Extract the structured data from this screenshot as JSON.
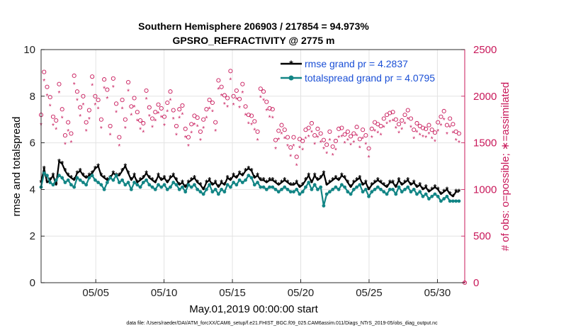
{
  "chart_data": {
    "type": "line",
    "title": "Southern Hemisphere 206903 / 217854 = 94.973%",
    "subtitle": "GPSRO_REFRACTIVITY @ 2775 m",
    "xlabel": "May.01,2019 00:00:00 start",
    "ylabel_left": "rmse and totalspread",
    "ylabel_right": "# of obs: o=possible; ∗=assimilated",
    "xlim": [
      1,
      32
    ],
    "ylim_left": [
      0,
      10
    ],
    "ylim_right": [
      0,
      2500
    ],
    "x_ticks": [
      5,
      10,
      15,
      20,
      25,
      30
    ],
    "x_tick_labels": [
      "05/05",
      "05/10",
      "05/15",
      "05/20",
      "05/25",
      "05/30"
    ],
    "y_ticks_left": [
      "0",
      "2",
      "4",
      "6",
      "8",
      "10"
    ],
    "y_ticks_right": [
      "0",
      "500",
      "1000",
      "1500",
      "2000",
      "2500"
    ],
    "grid": true,
    "legend_position": "top-right",
    "series": [
      {
        "name": "rmse grand pr = 4.2837",
        "axis": "left",
        "color": "#000000",
        "marker": "asterisk",
        "values": [
          4.3,
          4.9,
          4.3,
          4.4,
          4.6,
          4.2,
          5.2,
          5.1,
          4.8,
          4.6,
          4.5,
          4.4,
          4.7,
          4.8,
          4.6,
          4.5,
          4.6,
          4.7,
          4.9,
          5.0,
          4.6,
          4.5,
          4.4,
          4.5,
          4.7,
          4.6,
          4.6,
          4.8,
          5.0,
          4.7,
          4.4,
          4.6,
          4.3,
          4.4,
          4.5,
          4.7,
          4.5,
          4.4,
          4.3,
          4.6,
          4.4,
          4.5,
          4.3,
          4.5,
          4.6,
          4.4,
          4.2,
          4.3,
          4.1,
          4.3,
          4.4,
          4.5,
          4.3,
          4.2,
          4.0,
          4.3,
          4.4,
          4.2,
          4.3,
          4.1,
          4.3,
          4.2,
          4.5,
          4.4,
          4.6,
          4.5,
          4.7,
          4.6,
          4.8,
          4.9,
          4.8,
          4.5,
          4.6,
          4.4,
          4.4,
          4.3,
          4.4,
          4.4,
          4.3,
          4.2,
          4.3,
          4.4,
          4.3,
          4.2,
          4.2,
          4.3,
          4.1,
          4.2,
          4.4,
          4.6,
          4.3,
          4.6,
          4.4,
          4.5,
          4.7,
          4.2,
          4.3,
          4.4,
          4.5,
          4.4,
          4.6,
          4.5,
          4.3,
          4.1,
          4.3,
          4.4,
          4.5,
          4.2,
          4.3,
          4.0,
          4.2,
          4.3,
          4.4,
          4.3,
          4.2,
          4.1,
          4.3,
          4.3,
          4.1,
          4.4,
          4.2,
          4.3,
          4.4,
          4.2,
          4.3,
          4.1,
          4.2,
          4.0,
          4.1,
          3.9,
          4.0,
          4.1,
          4.0,
          3.8,
          3.9,
          4.0,
          3.8,
          3.7,
          3.9,
          3.9
        ],
        "x_start": 1.0,
        "x_step": 0.22
      },
      {
        "name": "totalspread grand pr = 4.0795",
        "axis": "left",
        "color": "#128585",
        "marker": "dot",
        "values": [
          4.1,
          4.7,
          4.6,
          4.3,
          4.2,
          4.4,
          4.6,
          4.5,
          4.3,
          4.4,
          4.2,
          4.1,
          4.5,
          4.4,
          4.3,
          4.2,
          4.5,
          4.6,
          4.4,
          4.3,
          4.2,
          4.0,
          4.3,
          4.5,
          4.4,
          4.6,
          4.3,
          4.4,
          4.2,
          4.3,
          4.0,
          4.3,
          4.2,
          4.1,
          4.3,
          4.4,
          4.2,
          4.1,
          4.0,
          4.2,
          4.1,
          4.2,
          4.0,
          4.1,
          4.3,
          4.2,
          4.0,
          4.1,
          3.9,
          4.2,
          4.1,
          4.2,
          4.0,
          3.9,
          3.8,
          4.0,
          4.2,
          3.9,
          4.0,
          3.8,
          4.0,
          3.9,
          4.2,
          4.1,
          4.3,
          4.2,
          4.4,
          4.3,
          4.4,
          4.6,
          4.5,
          4.2,
          4.3,
          4.1,
          4.1,
          4.0,
          4.1,
          4.1,
          4.0,
          3.9,
          4.0,
          4.1,
          4.0,
          3.9,
          3.9,
          4.0,
          3.8,
          3.9,
          4.1,
          4.3,
          4.0,
          4.2,
          4.0,
          4.1,
          3.3,
          3.8,
          3.9,
          4.0,
          4.1,
          4.0,
          4.2,
          4.1,
          3.9,
          3.8,
          4.0,
          4.1,
          4.2,
          3.9,
          4.0,
          3.7,
          3.9,
          4.0,
          4.1,
          4.0,
          3.9,
          3.8,
          4.0,
          4.0,
          3.8,
          4.1,
          3.9,
          4.0,
          4.1,
          3.9,
          4.0,
          3.8,
          3.9,
          3.7,
          3.8,
          3.6,
          3.7,
          3.8,
          3.7,
          3.5,
          3.6,
          3.7,
          3.5,
          3.5,
          3.5,
          3.5
        ],
        "x_start": 1.0,
        "x_step": 0.22
      }
    ],
    "obs_series": [
      {
        "name": "possible",
        "axis": "right",
        "marker": "o",
        "color": "#c8185a",
        "values": [
          1800,
          2260,
          2100,
          1990,
          1780,
          1740,
          2130,
          1860,
          1580,
          1720,
          1600,
          2220,
          2050,
          1880,
          2000,
          1720,
          1850,
          2210,
          2000,
          1960,
          1750,
          2180,
          2070,
          1680,
          2190,
          1920,
          1560,
          1960,
          1750,
          2150,
          1890,
          1980,
          1830,
          1740,
          1710,
          2060,
          1880,
          1760,
          1830,
          1910,
          1870,
          1780,
          1930,
          2050,
          1850,
          1680,
          1860,
          1900,
          1650,
          1560,
          1700,
          1790,
          1770,
          1620,
          1750,
          1860,
          1960,
          1930,
          1720,
          2170,
          2100,
          2010,
          1980,
          2270,
          2000,
          2060,
          1970,
          2130,
          1890,
          1800,
          1790,
          1730,
          1620,
          2080,
          2050,
          1940,
          1870,
          1860,
          1530,
          1630,
          1690,
          1640,
          1560,
          1450,
          1560,
          1350,
          1540,
          1520,
          1640,
          1660,
          1710,
          1580,
          1650,
          1600,
          1530,
          1480,
          1620,
          1460,
          1520,
          1650,
          1660,
          1590,
          1620,
          1570,
          1600,
          1670,
          1540,
          1640,
          1580,
          1440,
          1650,
          1720,
          1700,
          1680,
          1760,
          1800,
          1820,
          1830,
          1750,
          1700,
          1740,
          1800,
          1850,
          1760,
          1640,
          1710,
          1680,
          1660,
          1650,
          1690,
          1640,
          1610,
          1720,
          1780,
          1840,
          1690,
          1760,
          1700,
          1620,
          1600
        ],
        "x_start": 1.0,
        "x_step": 0.22
      },
      {
        "name": "assimilated",
        "axis": "right",
        "marker": "asterisk",
        "color": "#c8185a",
        "values": [
          1700,
          2170,
          2010,
          1900,
          1690,
          1650,
          2040,
          1770,
          1490,
          1630,
          1510,
          2130,
          1960,
          1790,
          1910,
          1630,
          1760,
          2120,
          1910,
          1870,
          1660,
          2090,
          1980,
          1590,
          2100,
          1830,
          1470,
          1870,
          1660,
          2060,
          1800,
          1890,
          1740,
          1650,
          1620,
          1970,
          1790,
          1670,
          1740,
          1820,
          1780,
          1690,
          1840,
          1960,
          1760,
          1590,
          1770,
          1810,
          1560,
          1470,
          1610,
          1700,
          1680,
          1530,
          1660,
          1770,
          1870,
          1840,
          1630,
          2080,
          2010,
          1920,
          1890,
          2180,
          1910,
          1970,
          1880,
          2040,
          1800,
          1710,
          1700,
          1640,
          1530,
          1990,
          1960,
          1850,
          1780,
          1770,
          1440,
          1540,
          1600,
          1550,
          1470,
          1360,
          1470,
          1260,
          1450,
          1430,
          1550,
          1570,
          1620,
          1490,
          1560,
          1510,
          1440,
          1390,
          1530,
          1370,
          1430,
          1560,
          1570,
          1500,
          1530,
          1480,
          1510,
          1580,
          1450,
          1550,
          1490,
          1350,
          1560,
          1630,
          1610,
          1590,
          1670,
          1710,
          1730,
          1740,
          1660,
          1610,
          1650,
          1710,
          1760,
          1670,
          1550,
          1620,
          1590,
          1570,
          1560,
          1600,
          1550,
          1520,
          1630,
          1690,
          1750,
          1600,
          1670,
          1610,
          1530,
          1510
        ],
        "x_start": 1.0,
        "x_step": 0.22
      }
    ],
    "footnote": "data file: /Users/raeder/DAI/ATM_forcXX/CAM6_setup/f.e21.FHIST_BGC.f09_025.CAM6assim.011/Diags_NTrS_2019-05/obs_diag_output.nc"
  },
  "colors": {
    "rmse": "#000000",
    "spread": "#128585",
    "obs": "#c8185a",
    "legend_text": "#1a4fd6"
  }
}
